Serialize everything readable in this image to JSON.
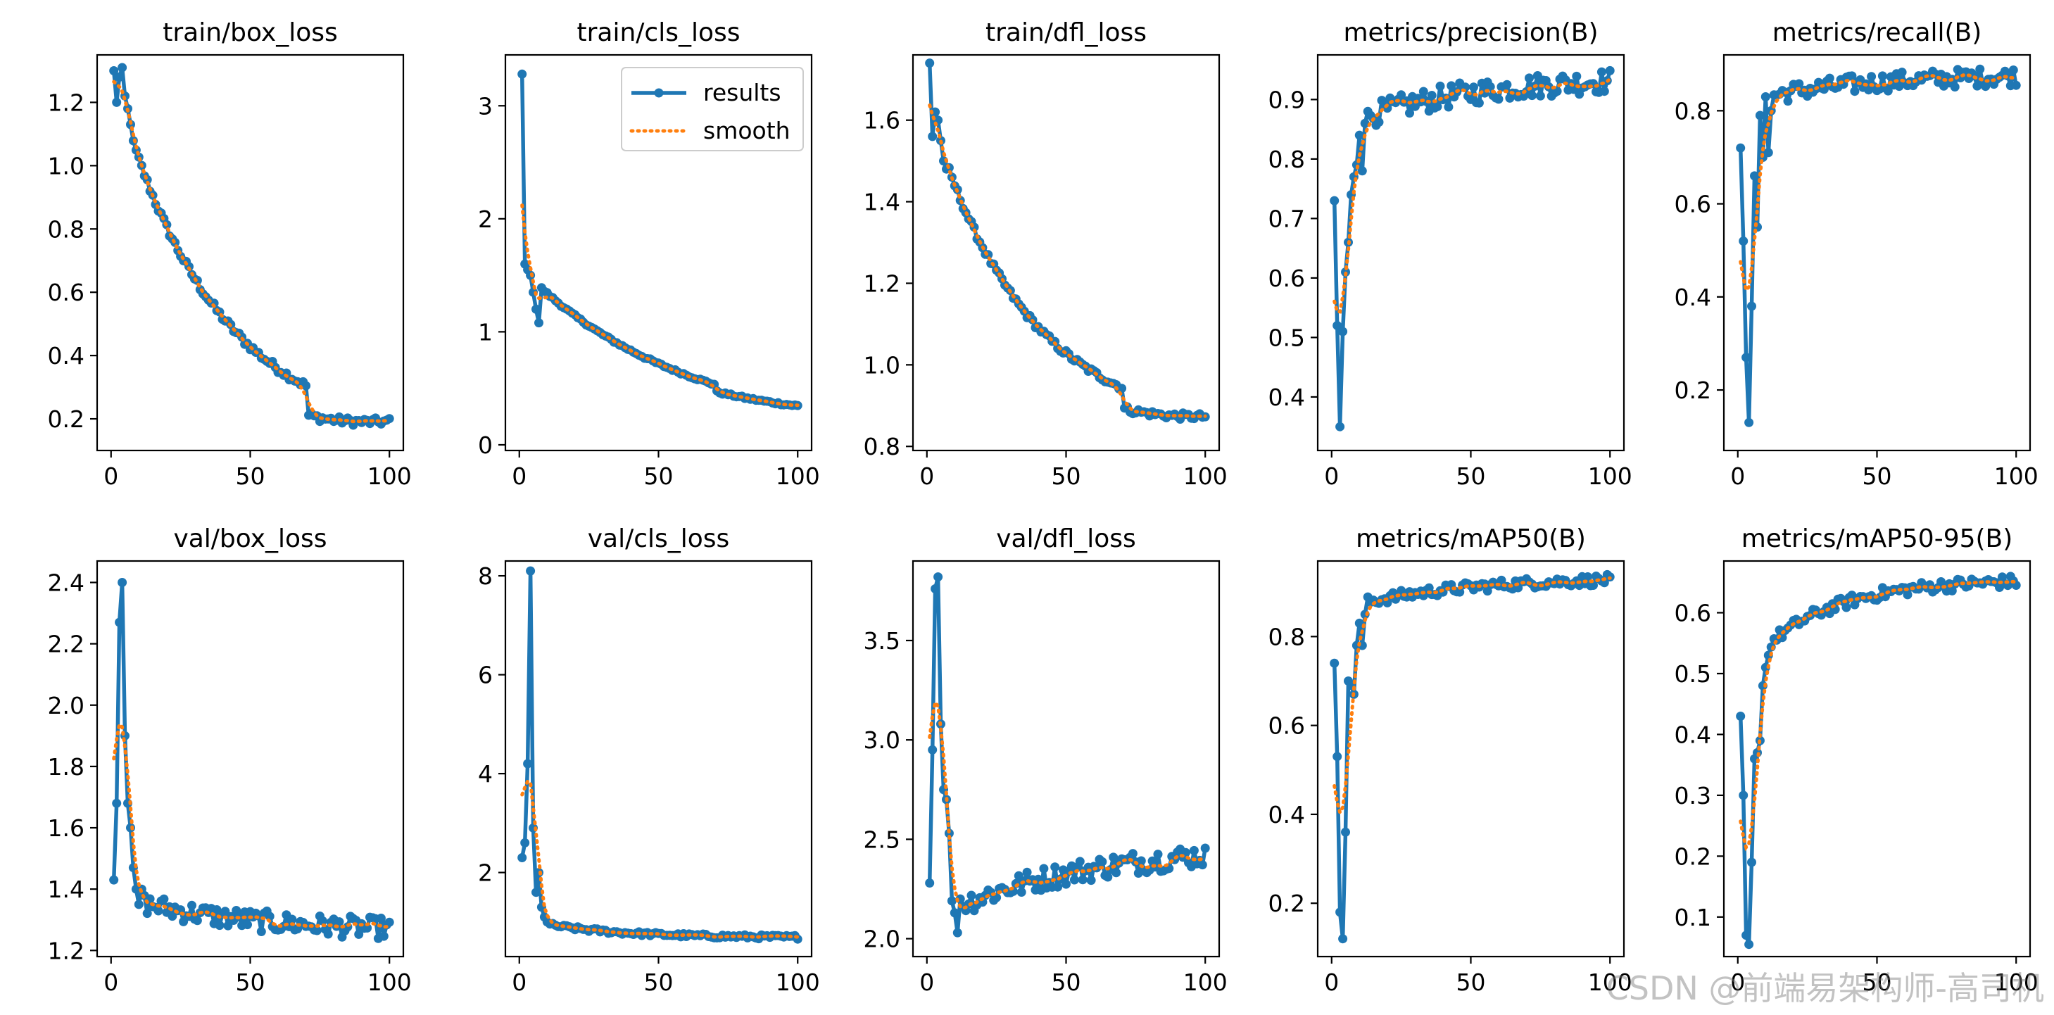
{
  "colors": {
    "results": "#1f77b4",
    "smooth": "#ff7f0e"
  },
  "legend": {
    "results_label": "results",
    "smooth_label": "smooth",
    "placement": "upper-right",
    "subplot_index": 1
  },
  "watermark": "CSDN @前端易架构师-高司机",
  "chart_data": [
    {
      "type": "line",
      "title": "train/box_loss",
      "xlim": [
        -5,
        105
      ],
      "ylim": [
        0.1,
        1.35
      ],
      "xticks": [
        0,
        50,
        100
      ],
      "yticks": [
        0.2,
        0.4,
        0.6,
        0.8,
        1.0,
        1.2
      ],
      "ytick_labels": [
        "0.2",
        "0.4",
        "0.6",
        "0.8",
        "1.0",
        "1.2"
      ],
      "x": [
        1,
        100
      ],
      "pattern": "decay",
      "start": 1.27,
      "end": 0.14,
      "k": 1.2,
      "noise": 0.012,
      "step": {
        "at": 71,
        "drop": 0.09
      },
      "head": [
        1.3,
        1.2,
        1.28,
        1.31,
        1.22,
        1.18,
        1.13
      ]
    },
    {
      "type": "line",
      "title": "train/cls_loss",
      "xlim": [
        -5,
        105
      ],
      "ylim": [
        -0.05,
        3.45
      ],
      "xticks": [
        0,
        50,
        100
      ],
      "yticks": [
        0,
        1,
        2,
        3
      ],
      "ytick_labels": [
        "0",
        "1",
        "2",
        "3"
      ],
      "x": [
        1,
        100
      ],
      "pattern": "decay",
      "start": 1.55,
      "end": 0.1,
      "k": 0.75,
      "noise": 0.01,
      "step": {
        "at": 71,
        "drop": 0.06
      },
      "head": [
        3.28,
        1.6,
        1.55,
        1.5,
        1.35,
        1.2,
        1.08
      ]
    },
    {
      "type": "line",
      "title": "train/dfl_loss",
      "xlim": [
        -5,
        105
      ],
      "ylim": [
        0.79,
        1.76
      ],
      "xticks": [
        0,
        50,
        100
      ],
      "yticks": [
        0.8,
        1.0,
        1.2,
        1.4,
        1.6
      ],
      "ytick_labels": [
        "0.8",
        "1.0",
        "1.2",
        "1.4",
        "1.6"
      ],
      "x": [
        1,
        100
      ],
      "pattern": "decay",
      "start": 1.62,
      "end": 0.84,
      "k": 1.25,
      "noise": 0.008,
      "step": {
        "at": 71,
        "drop": 0.05
      },
      "head": [
        1.74,
        1.56,
        1.62,
        1.6,
        1.55,
        1.5,
        1.48
      ]
    },
    {
      "type": "line",
      "title": "metrics/precision(B)",
      "xlim": [
        -5,
        105
      ],
      "ylim": [
        0.31,
        0.975
      ],
      "xticks": [
        0,
        50,
        100
      ],
      "yticks": [
        0.4,
        0.5,
        0.6,
        0.7,
        0.8,
        0.9
      ],
      "ytick_labels": [
        "0.4",
        "0.5",
        "0.6",
        "0.7",
        "0.8",
        "0.9"
      ],
      "x": [
        1,
        100
      ],
      "pattern": "rise",
      "start": 0.85,
      "end": 0.94,
      "k": 1.0,
      "noise": 0.02,
      "head": [
        0.73,
        0.52,
        0.35,
        0.51,
        0.61,
        0.66,
        0.74,
        0.77,
        0.79,
        0.84,
        0.78,
        0.86,
        0.88
      ]
    },
    {
      "type": "line",
      "title": "metrics/recall(B)",
      "xlim": [
        -5,
        105
      ],
      "ylim": [
        0.07,
        0.92
      ],
      "xticks": [
        0,
        50,
        100
      ],
      "yticks": [
        0.2,
        0.4,
        0.6,
        0.8
      ],
      "ytick_labels": [
        "0.2",
        "0.4",
        "0.6",
        "0.8"
      ],
      "x": [
        1,
        100
      ],
      "pattern": "rise",
      "start": 0.82,
      "end": 0.88,
      "k": 1.0,
      "noise": 0.02,
      "head": [
        0.72,
        0.52,
        0.27,
        0.13,
        0.38,
        0.66,
        0.55,
        0.79,
        0.7,
        0.83,
        0.71,
        0.8
      ]
    },
    {
      "type": "line",
      "title": "val/box_loss",
      "xlim": [
        -5,
        105
      ],
      "ylim": [
        1.18,
        2.47
      ],
      "xticks": [
        0,
        50,
        100
      ],
      "yticks": [
        1.2,
        1.4,
        1.6,
        1.8,
        2.0,
        2.2,
        2.4
      ],
      "ytick_labels": [
        "1.2",
        "1.4",
        "1.6",
        "1.8",
        "2.0",
        "2.2",
        "2.4"
      ],
      "x": [
        1,
        100
      ],
      "pattern": "decay",
      "start": 1.38,
      "end": 1.26,
      "k": 1.0,
      "noise": 0.035,
      "head": [
        1.43,
        1.68,
        2.27,
        2.4,
        1.9,
        1.68,
        1.6,
        1.47,
        1.4,
        1.35,
        1.4
      ]
    },
    {
      "type": "line",
      "title": "val/cls_loss",
      "xlim": [
        -5,
        105
      ],
      "ylim": [
        0.3,
        8.3
      ],
      "xticks": [
        0,
        50,
        100
      ],
      "yticks": [
        2,
        4,
        6,
        8
      ],
      "ytick_labels": [
        "2",
        "4",
        "6",
        "8"
      ],
      "x": [
        1,
        100
      ],
      "pattern": "decay",
      "start": 1.05,
      "end": 0.68,
      "k": 1.5,
      "noise": 0.04,
      "head": [
        2.3,
        2.6,
        4.2,
        8.1,
        2.9,
        1.6,
        2.0,
        1.3,
        1.1,
        1.0
      ]
    },
    {
      "type": "line",
      "title": "val/dfl_loss",
      "xlim": [
        -5,
        105
      ],
      "ylim": [
        1.91,
        3.9
      ],
      "xticks": [
        0,
        50,
        100
      ],
      "yticks": [
        2.0,
        2.5,
        3.0,
        3.5
      ],
      "ytick_labels": [
        "2.0",
        "2.5",
        "3.0",
        "3.5"
      ],
      "x": [
        1,
        100
      ],
      "pattern": "rise",
      "start": 2.1,
      "end": 2.48,
      "k": 0.8,
      "noise": 0.06,
      "head": [
        2.28,
        2.95,
        3.76,
        3.82,
        3.08,
        2.75,
        2.7,
        2.53,
        2.19,
        2.13,
        2.03,
        2.2
      ]
    },
    {
      "type": "line",
      "title": "metrics/mAP50(B)",
      "xlim": [
        -5,
        105
      ],
      "ylim": [
        0.08,
        0.97
      ],
      "xticks": [
        0,
        50,
        100
      ],
      "yticks": [
        0.2,
        0.4,
        0.6,
        0.8
      ],
      "ytick_labels": [
        "0.2",
        "0.4",
        "0.6",
        "0.8"
      ],
      "x": [
        1,
        100
      ],
      "pattern": "rise",
      "start": 0.86,
      "end": 0.935,
      "k": 1.0,
      "noise": 0.012,
      "head": [
        0.74,
        0.53,
        0.18,
        0.12,
        0.36,
        0.7,
        0.69,
        0.67,
        0.78,
        0.83,
        0.78,
        0.85
      ]
    },
    {
      "type": "line",
      "title": "metrics/mAP50-95(B)",
      "xlim": [
        -5,
        105
      ],
      "ylim": [
        0.035,
        0.685
      ],
      "xticks": [
        0,
        50,
        100
      ],
      "yticks": [
        0.1,
        0.2,
        0.3,
        0.4,
        0.5,
        0.6
      ],
      "ytick_labels": [
        "0.1",
        "0.2",
        "0.3",
        "0.4",
        "0.5",
        "0.6"
      ],
      "x": [
        1,
        100
      ],
      "pattern": "rise",
      "start": 0.5,
      "end": 0.655,
      "k": 1.6,
      "noise": 0.01,
      "head": [
        0.43,
        0.3,
        0.07,
        0.055,
        0.19,
        0.36,
        0.37,
        0.39,
        0.48,
        0.51,
        0.53
      ]
    }
  ]
}
